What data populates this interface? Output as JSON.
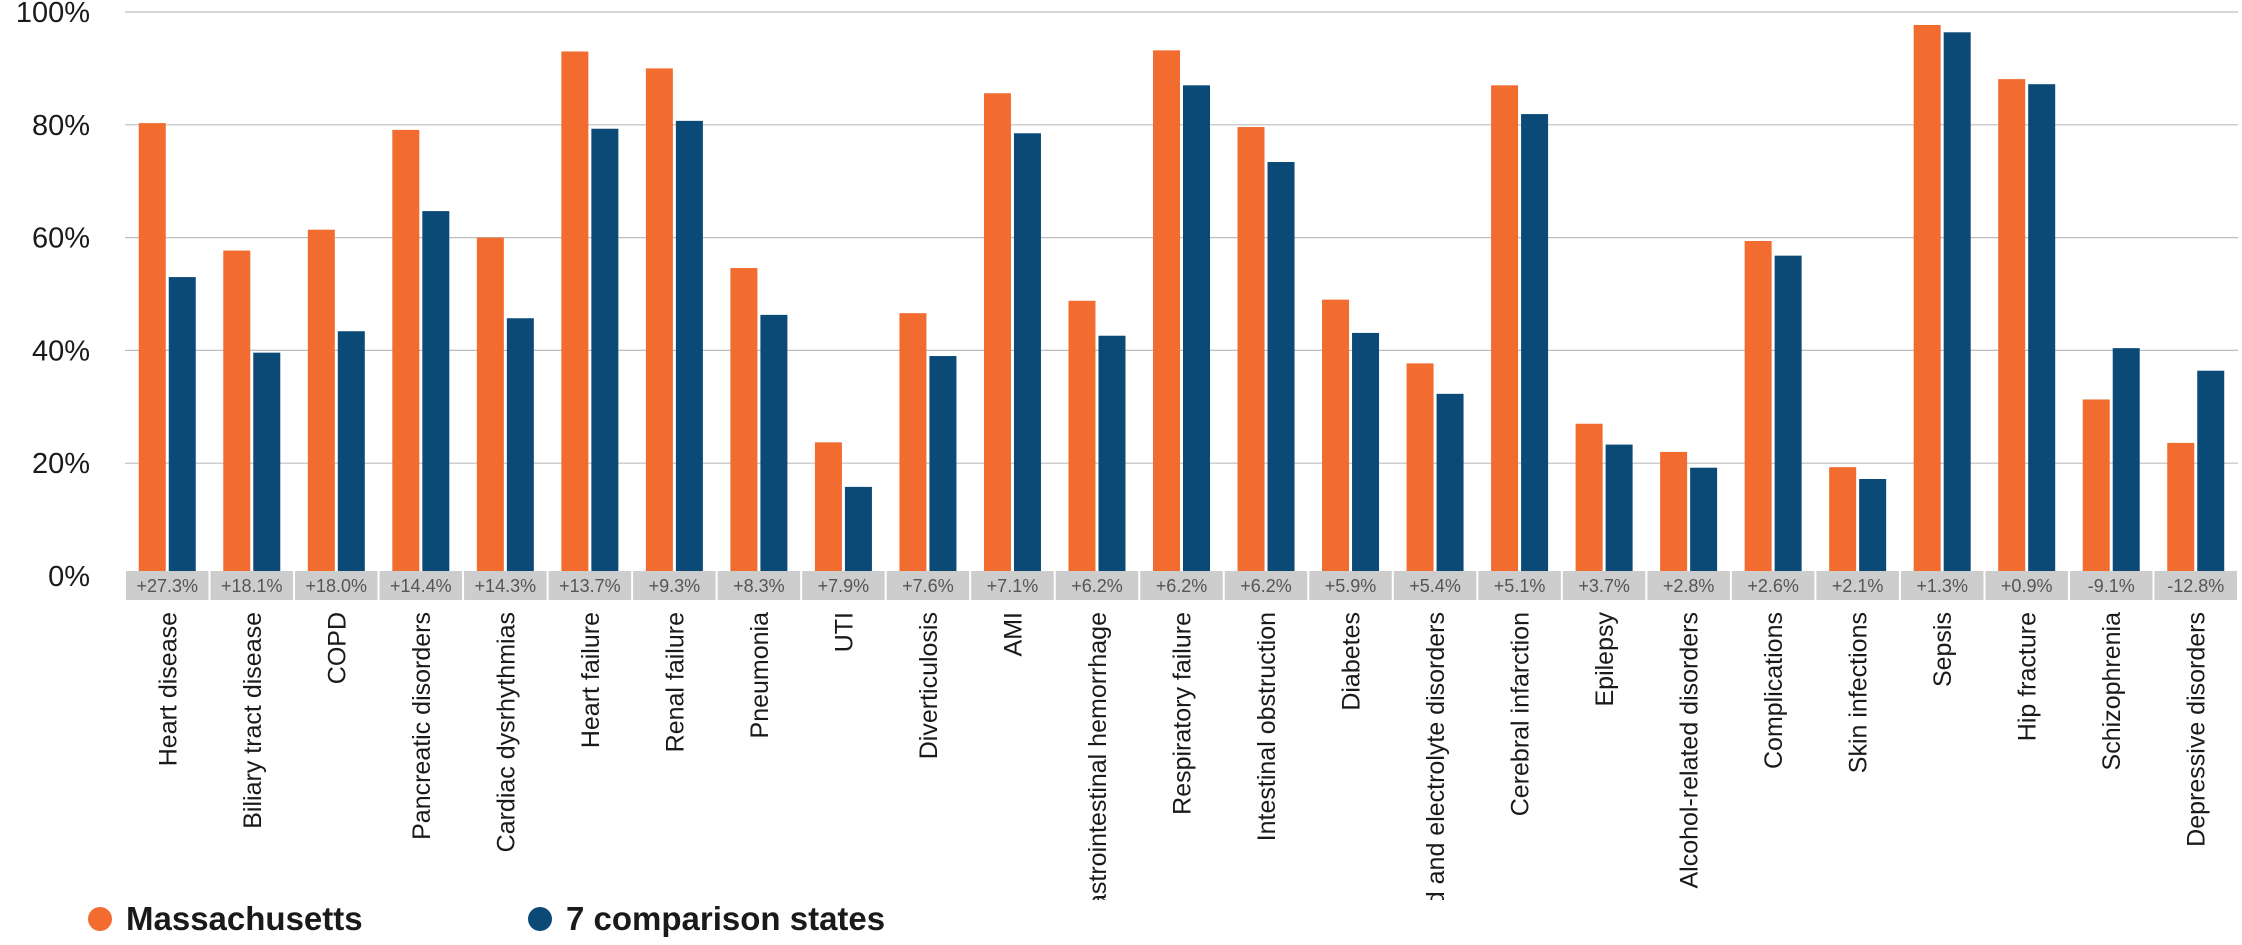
{
  "chart_data": {
    "type": "bar",
    "yticks": [
      "0%",
      "20%",
      "40%",
      "60%",
      "80%",
      "100%"
    ],
    "ylim": [
      0,
      100
    ],
    "grid": true,
    "legend_position": "bottom-left",
    "categories": [
      "Heart disease",
      "Biliary tract disease",
      "COPD",
      "Pancreatic disorders",
      "Cardiac dysrhythmias",
      "Heart failure",
      "Renal failure",
      "Pneumonia",
      "UTI",
      "Diverticulosis",
      "AMI",
      "Gastrointestinal hemorrhage",
      "Respiratory failure",
      "Intestinal obstruction",
      "Diabetes",
      "Fluid and electrolyte disorders",
      "Cerebral infarction",
      "Epilepsy",
      "Alcohol-related disorders",
      "Complications",
      "Skin infections",
      "Sepsis",
      "Hip fracture",
      "Schizophrenia",
      "Depressive disorders"
    ],
    "differences": [
      "+27.3%",
      "+18.1%",
      "+18.0%",
      "+14.4%",
      "+14.3%",
      "+13.7%",
      "+9.3%",
      "+8.3%",
      "+7.9%",
      "+7.6%",
      "+7.1%",
      "+6.2%",
      "+6.2%",
      "+6.2%",
      "+5.9%",
      "+5.4%",
      "+5.1%",
      "+3.7%",
      "+2.8%",
      "+2.6%",
      "+2.1%",
      "+1.3%",
      "+0.9%",
      "-9.1%",
      "-12.8%"
    ],
    "series": [
      {
        "name": "Massachusetts",
        "color": "#f26b2f",
        "values": [
          80.3,
          57.7,
          61.4,
          79.1,
          60.0,
          93.0,
          90.0,
          54.6,
          23.7,
          46.6,
          85.6,
          48.8,
          93.2,
          79.6,
          49.0,
          37.7,
          87.0,
          27.0,
          22.0,
          59.4,
          19.3,
          97.7,
          88.1,
          31.3,
          23.6
        ]
      },
      {
        "name": "7 comparison states",
        "color": "#0b4a77",
        "values": [
          53.0,
          39.6,
          43.4,
          64.7,
          45.7,
          79.3,
          80.7,
          46.3,
          15.8,
          39.0,
          78.5,
          42.6,
          87.0,
          73.4,
          43.1,
          32.3,
          81.9,
          23.3,
          19.2,
          56.8,
          17.2,
          96.4,
          87.2,
          40.4,
          36.4
        ]
      }
    ]
  },
  "legend": {
    "series_a": "Massachusetts",
    "series_b": "7 comparison states"
  },
  "colors": {
    "grid": "#bdbdbd",
    "diff_box": "#cdcdcd",
    "diff_text": "#555555",
    "text": "#1a1a1a"
  }
}
